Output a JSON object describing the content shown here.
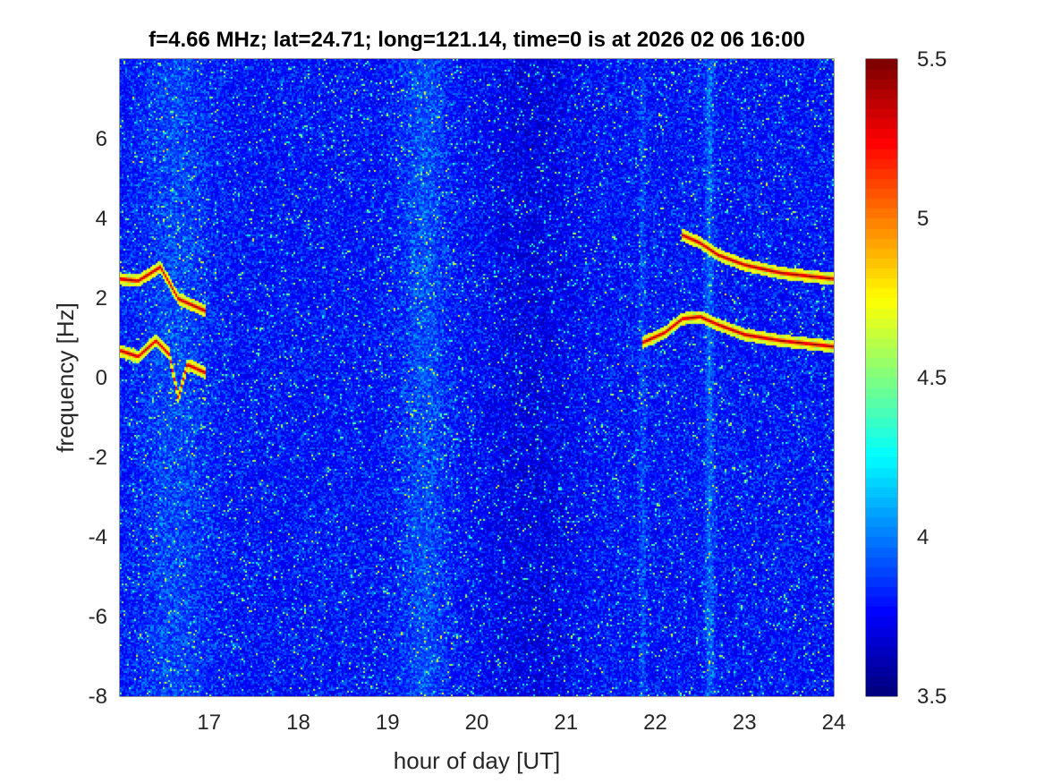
{
  "chart_data": {
    "type": "heatmap",
    "title": "f=4.66 MHz;  lat=24.71; long=121.14, time=0 is at 2026 02 06 16:00",
    "xlabel": "hour of day [UT]",
    "ylabel": "frequency [Hz]",
    "xlim": [
      16,
      24
    ],
    "ylim": [
      -8,
      8
    ],
    "xticks": [
      17,
      18,
      19,
      20,
      21,
      22,
      23,
      24
    ],
    "xtick_labels": [
      "17",
      "18",
      "19",
      "20",
      "21",
      "22",
      "23",
      "24"
    ],
    "yticks": [
      -8,
      -6,
      -4,
      -2,
      0,
      2,
      4,
      6
    ],
    "ytick_labels": [
      "-8",
      "-6",
      "-4",
      "-2",
      "0",
      "2",
      "4",
      "6"
    ],
    "colormap": "jet",
    "colorbar": {
      "range": [
        3.5,
        5.5
      ],
      "ticks": [
        3.5,
        4,
        4.5,
        5,
        5.5
      ],
      "tick_labels": [
        "3.5",
        "4",
        "4.5",
        "5",
        "5.5"
      ]
    },
    "grid": false,
    "traces": [
      {
        "x": [
          16.0,
          16.2,
          16.45,
          16.65,
          16.95
        ],
        "y": [
          2.5,
          2.45,
          2.8,
          2.0,
          1.7
        ]
      },
      {
        "x": [
          16.0,
          16.2,
          16.4,
          16.55,
          16.65,
          16.75,
          16.95
        ],
        "y": [
          0.7,
          0.55,
          0.95,
          0.6,
          -0.5,
          0.35,
          0.15
        ]
      },
      {
        "x": [
          22.3,
          22.5,
          22.7,
          23.0,
          23.4,
          23.8,
          24.0
        ],
        "y": [
          3.6,
          3.4,
          3.1,
          2.85,
          2.65,
          2.55,
          2.5
        ]
      },
      {
        "x": [
          21.85,
          22.1,
          22.3,
          22.5,
          22.7,
          23.0,
          23.4,
          23.8,
          24.0
        ],
        "y": [
          0.9,
          1.15,
          1.5,
          1.55,
          1.35,
          1.1,
          0.95,
          0.85,
          0.8
        ]
      }
    ]
  }
}
